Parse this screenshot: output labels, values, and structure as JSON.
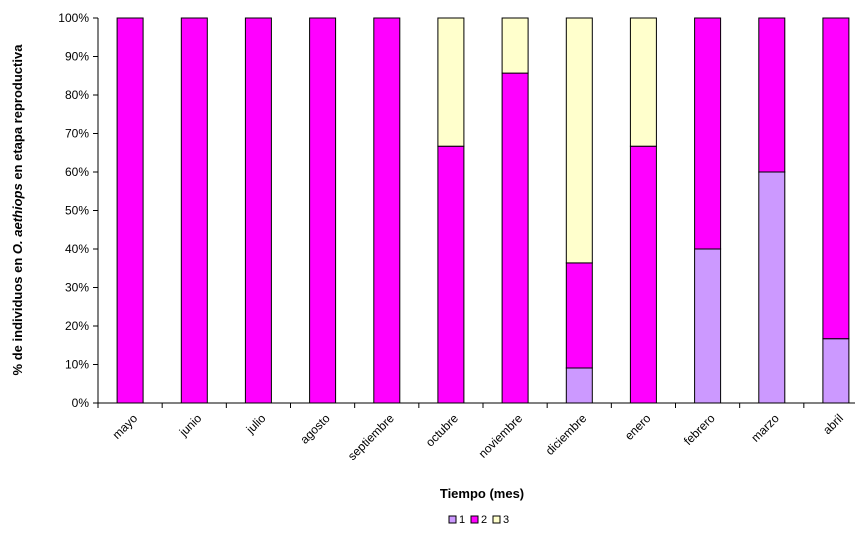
{
  "chart_data": {
    "type": "bar",
    "stacked": true,
    "percent": true,
    "title": "",
    "xlabel": "Tiempo (mes)",
    "ylabel_parts": [
      "% de individuos en ",
      "O. aethiops",
      " en etapa reproductiva"
    ],
    "categories": [
      "mayo",
      "junio",
      "julio",
      "agosto",
      "septiembre",
      "octubre",
      "noviembre",
      "diciembre",
      "enero",
      "febrero",
      "marzo",
      "abril"
    ],
    "series": [
      {
        "name": "1",
        "color": "#cc99ff",
        "values": [
          0,
          0,
          0,
          0,
          0,
          0,
          0,
          9.1,
          0,
          40,
          60,
          16.7
        ]
      },
      {
        "name": "2",
        "color": "#ff00ff",
        "values": [
          100,
          100,
          100,
          100,
          100,
          66.7,
          85.7,
          27.3,
          66.7,
          60,
          40,
          83.3
        ]
      },
      {
        "name": "3",
        "color": "#ffffcc",
        "values": [
          0,
          0,
          0,
          0,
          0,
          33.3,
          14.3,
          63.6,
          33.3,
          0,
          0,
          0
        ]
      }
    ],
    "yticks": [
      "0%",
      "10%",
      "20%",
      "30%",
      "40%",
      "50%",
      "60%",
      "70%",
      "80%",
      "90%",
      "100%"
    ],
    "ylim": [
      0,
      100
    ],
    "grid": false,
    "legend_position": "bottom"
  }
}
